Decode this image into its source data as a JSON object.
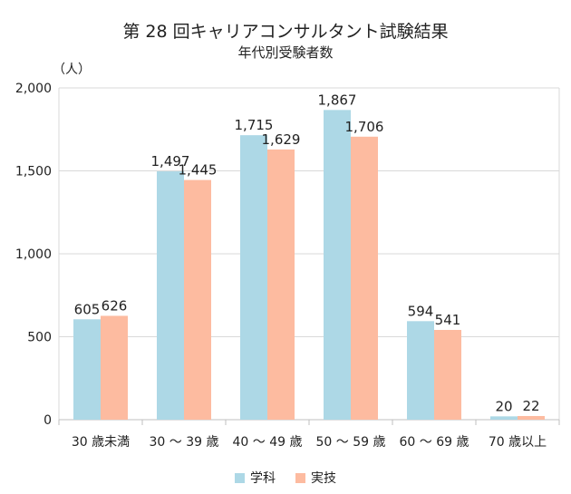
{
  "chart_data": {
    "type": "bar",
    "title": "第 28 回キャリアコンサルタント試験結果",
    "subtitle": "年代別受験者数",
    "ylabel": "（人）",
    "ylim": [
      0,
      2000
    ],
    "yticks": [
      0,
      500,
      1000,
      1500,
      2000
    ],
    "ytick_labels": [
      "0",
      "500",
      "1,000",
      "1,500",
      "2,000"
    ],
    "categories": [
      "30 歳未満",
      "30 〜 39 歳",
      "40 〜 49 歳",
      "50 〜 59 歳",
      "60 〜 69 歳",
      "70 歳以上"
    ],
    "series": [
      {
        "name": "学科",
        "color": "#add8e6",
        "values": [
          605,
          1497,
          1715,
          1867,
          594,
          20
        ],
        "labels": [
          "605",
          "1,497",
          "1,715",
          "1,867",
          "594",
          "20"
        ]
      },
      {
        "name": "実技",
        "color": "#fdbba0",
        "values": [
          626,
          1445,
          1629,
          1706,
          541,
          22
        ],
        "labels": [
          "626",
          "1,445",
          "1,629",
          "1,706",
          "541",
          "22"
        ]
      }
    ],
    "grid": true,
    "legend_position": "bottom"
  }
}
